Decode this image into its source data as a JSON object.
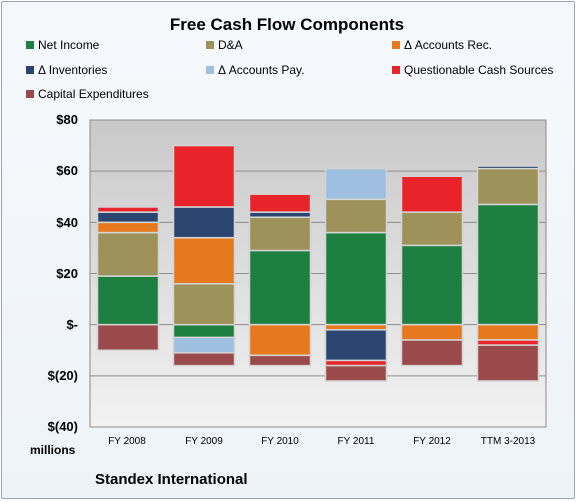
{
  "chart_data": {
    "type": "bar",
    "stacked": true,
    "title": "Free Cash Flow Components",
    "ylim": [
      -40,
      80
    ],
    "yticks": [
      80,
      60,
      40,
      20,
      0,
      -20,
      -40
    ],
    "ytick_labels": [
      "$80",
      "$60",
      "$40",
      "$20",
      "$-",
      "$(20)",
      "$(40)"
    ],
    "units_label": "millions",
    "grid": true,
    "legend_position": "top",
    "categories": [
      "FY 2008",
      "FY 2009",
      "FY 2010",
      "FY 2011",
      "FY 2012",
      "TTM 3-2013"
    ],
    "series": [
      {
        "name": "Net Income",
        "color": "#1e8040",
        "values": [
          19,
          -5,
          29,
          36,
          31,
          47
        ]
      },
      {
        "name": "D&A",
        "color": "#9d925a",
        "values": [
          17,
          16,
          13,
          13,
          13,
          14
        ]
      },
      {
        "name": "Δ Accounts Rec.",
        "color": "#e6791e",
        "values": [
          4,
          18,
          -12,
          -2,
          -6,
          -6
        ]
      },
      {
        "name": "Δ Inventories",
        "color": "#2a4670",
        "values": [
          4,
          12,
          2,
          -12,
          0,
          1
        ]
      },
      {
        "name": "Δ Accounts Pay.",
        "color": "#9fbfe0",
        "values": [
          0,
          -6,
          0,
          12,
          0,
          0
        ]
      },
      {
        "name": "Questionable Cash Sources",
        "color": "#e8242a",
        "values": [
          2,
          24,
          7,
          -2,
          14,
          -2
        ]
      },
      {
        "name": "Capital Expenditures",
        "color": "#9a4a4a",
        "values": [
          -10,
          -5,
          -4,
          -6,
          -10,
          -14
        ]
      }
    ]
  },
  "footer": {
    "company": "Standex International"
  }
}
